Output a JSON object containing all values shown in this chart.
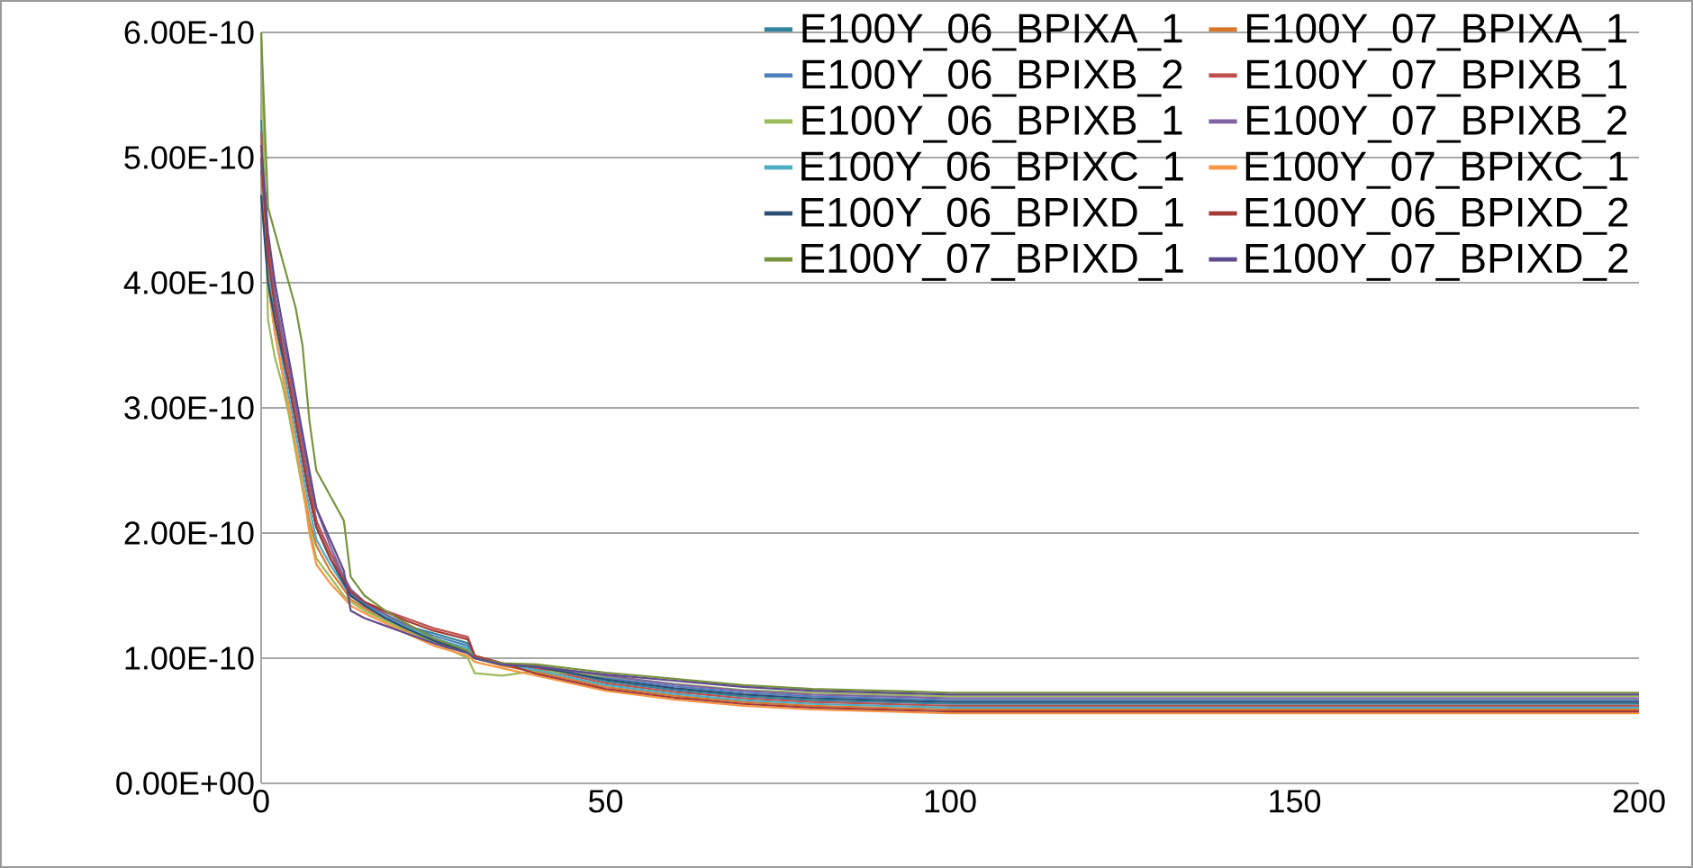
{
  "chart_data": {
    "type": "line",
    "x": [
      0,
      1,
      2,
      3,
      4,
      5,
      6,
      7,
      8,
      10,
      12,
      13,
      15,
      18,
      21,
      25,
      30,
      31,
      35,
      40,
      50,
      60,
      70,
      80,
      100,
      120,
      140,
      160,
      180,
      200
    ],
    "xlim": [
      0,
      200
    ],
    "xticks": [
      0,
      50,
      100,
      150,
      200
    ],
    "ylim": [
      0,
      6e-10
    ],
    "yticks": [
      {
        "value": 0,
        "label": "0.00E+00"
      },
      {
        "value": 1e-10,
        "label": "1.00E-10"
      },
      {
        "value": 2e-10,
        "label": "2.00E-10"
      },
      {
        "value": 3e-10,
        "label": "3.00E-10"
      },
      {
        "value": 4e-10,
        "label": "4.00E-10"
      },
      {
        "value": 5e-10,
        "label": "5.00E-10"
      },
      {
        "value": 6e-10,
        "label": "6.00E-10"
      }
    ],
    "grid": "y",
    "legend": "top right",
    "series": [
      {
        "name": "E100Y_06_BPIXA_1",
        "color": "#31859c",
        "values": [
          5.3e-10,
          4.3e-10,
          3.9e-10,
          3.5e-10,
          3.2e-10,
          2.9e-10,
          2.6e-10,
          2.3e-10,
          2.05e-10,
          1.8e-10,
          1.6e-10,
          1.5e-10,
          1.43e-10,
          1.33e-10,
          1.26e-10,
          1.2e-10,
          1.12e-10,
          1e-10,
          9.5e-11,
          9.35e-11,
          8.15e-11,
          7.45e-11,
          6.95e-11,
          6.65e-11,
          6.35e-11,
          6.35e-11,
          6.35e-11,
          6.35e-11,
          6.35e-11,
          6.35e-11
        ]
      },
      {
        "name": "E100Y_07_BPIXA_1",
        "color": "#d9782d",
        "values": [
          4.9e-10,
          4e-10,
          3.6e-10,
          3.3e-10,
          3e-10,
          2.7e-10,
          2.4e-10,
          2.1e-10,
          1.9e-10,
          1.7e-10,
          1.55e-10,
          1.47e-10,
          1.4e-10,
          1.3e-10,
          1.22e-10,
          1.13e-10,
          1.05e-10,
          1e-10,
          9.4e-11,
          8.9e-11,
          7.7e-11,
          7e-11,
          6.5e-11,
          6.2e-11,
          5.9e-11,
          5.9e-11,
          5.9e-11,
          5.9e-11,
          5.9e-11,
          5.9e-11
        ]
      },
      {
        "name": "E100Y_06_BPIXB_2",
        "color": "#4f81bd",
        "values": [
          5.1e-10,
          4.3e-10,
          3.9e-10,
          3.6e-10,
          3.3e-10,
          3e-10,
          2.7e-10,
          2.4e-10,
          2.1e-10,
          1.85e-10,
          1.62e-10,
          1.52e-10,
          1.44e-10,
          1.35e-10,
          1.27e-10,
          1.18e-10,
          1.1e-10,
          1e-10,
          9.5e-11,
          9.4e-11,
          8.45e-11,
          7.75e-11,
          7.25e-11,
          6.95e-11,
          6.65e-11,
          6.65e-11,
          6.65e-11,
          6.65e-11,
          6.65e-11,
          6.65e-11
        ]
      },
      {
        "name": "E100Y_07_BPIXB_1",
        "color": "#c0504d",
        "values": [
          5.2e-10,
          4.3e-10,
          3.9e-10,
          3.6e-10,
          3.3e-10,
          3e-10,
          2.7e-10,
          2.4e-10,
          2.1e-10,
          1.85e-10,
          1.65e-10,
          1.55e-10,
          1.45e-10,
          1.38e-10,
          1.32e-10,
          1.24e-10,
          1.17e-10,
          1.02e-10,
          9.6e-11,
          9.2e-11,
          8e-11,
          7.3e-11,
          6.8e-11,
          6.5e-11,
          6.2e-11,
          6.2e-11,
          6.2e-11,
          6.2e-11,
          6.2e-11,
          6.2e-11
        ]
      },
      {
        "name": "E100Y_06_BPIXB_1",
        "color": "#9bbb59",
        "values": [
          6e-10,
          3.7e-10,
          3.4e-10,
          3.2e-10,
          2.95e-10,
          2.65e-10,
          2.35e-10,
          2.05e-10,
          1.8e-10,
          1.65e-10,
          1.5e-10,
          1.45e-10,
          1.38e-10,
          1.3e-10,
          1.23e-10,
          1.13e-10,
          1e-10,
          8.8e-11,
          8.6e-11,
          9e-11,
          8.55e-11,
          7.95e-11,
          7.45e-11,
          7.25e-11,
          6.95e-11,
          6.95e-11,
          6.95e-11,
          6.95e-11,
          6.95e-11,
          6.95e-11
        ]
      },
      {
        "name": "E100Y_07_BPIXB_2",
        "color": "#8064a2",
        "values": [
          4.9e-10,
          4.2e-10,
          3.9e-10,
          3.6e-10,
          3.35e-10,
          3.05e-10,
          2.75e-10,
          2.45e-10,
          2.2e-10,
          1.9e-10,
          1.65e-10,
          1.55e-10,
          1.45e-10,
          1.35e-10,
          1.26e-10,
          1.15e-10,
          1.06e-10,
          1e-10,
          9.5e-11,
          9.4e-11,
          8.6e-11,
          7.9e-11,
          7.4e-11,
          7.1e-11,
          6.8e-11,
          6.8e-11,
          6.8e-11,
          6.8e-11,
          6.8e-11,
          6.8e-11
        ]
      },
      {
        "name": "E100Y_06_BPIXC_1",
        "color": "#4bacc6",
        "values": [
          5e-10,
          4.1e-10,
          3.7e-10,
          3.4e-10,
          3.1e-10,
          2.8e-10,
          2.5e-10,
          2.2e-10,
          1.95e-10,
          1.75e-10,
          1.58e-10,
          1.5e-10,
          1.42e-10,
          1.33e-10,
          1.25e-10,
          1.16e-10,
          1.08e-10,
          1e-10,
          9.5e-11,
          9.05e-11,
          7.85e-11,
          7.15e-11,
          6.65e-11,
          6.35e-11,
          6.05e-11,
          6.05e-11,
          6.05e-11,
          6.05e-11,
          6.05e-11,
          6.05e-11
        ]
      },
      {
        "name": "E100Y_07_BPIXC_1",
        "color": "#f79646",
        "values": [
          5.1e-10,
          4e-10,
          3.6e-10,
          3.3e-10,
          3e-10,
          2.7e-10,
          2.4e-10,
          2e-10,
          1.75e-10,
          1.6e-10,
          1.48e-10,
          1.42e-10,
          1.36e-10,
          1.28e-10,
          1.2e-10,
          1.1e-10,
          1.02e-10,
          9.7e-11,
          9.2e-11,
          8.6e-11,
          7.4e-11,
          6.7e-11,
          6.2e-11,
          5.9e-11,
          5.6e-11,
          5.6e-11,
          5.6e-11,
          5.6e-11,
          5.6e-11,
          5.6e-11
        ]
      },
      {
        "name": "E100Y_06_BPIXD_1",
        "color": "#2c4d75",
        "values": [
          4.7e-10,
          4e-10,
          3.7e-10,
          3.45e-10,
          3.2e-10,
          2.9e-10,
          2.6e-10,
          2.3e-10,
          2.05e-10,
          1.8e-10,
          1.6e-10,
          1.5e-10,
          1.42e-10,
          1.32e-10,
          1.24e-10,
          1.14e-10,
          1.05e-10,
          1e-10,
          9.5e-11,
          9.3e-11,
          8.3e-11,
          7.6e-11,
          7.1e-11,
          6.8e-11,
          6.5e-11,
          6.5e-11,
          6.5e-11,
          6.5e-11,
          6.5e-11,
          6.5e-11
        ]
      },
      {
        "name": "E100Y_06_BPIXD_2",
        "color": "#a33b38",
        "values": [
          5e-10,
          4.2e-10,
          3.8e-10,
          3.5e-10,
          3.2e-10,
          2.9e-10,
          2.6e-10,
          2.3e-10,
          2.05e-10,
          1.8e-10,
          1.62e-10,
          1.53e-10,
          1.45e-10,
          1.37e-10,
          1.3e-10,
          1.22e-10,
          1.15e-10,
          1.02e-10,
          9.6e-11,
          8.75e-11,
          7.55e-11,
          6.85e-11,
          6.35e-11,
          6.05e-11,
          5.75e-11,
          5.75e-11,
          5.75e-11,
          5.75e-11,
          5.75e-11,
          5.75e-11
        ]
      },
      {
        "name": "E100Y_07_BPIXD_1",
        "color": "#77933c",
        "values": [
          6e-10,
          4.6e-10,
          4.4e-10,
          4.2e-10,
          4e-10,
          3.8e-10,
          3.5e-10,
          2.9e-10,
          2.5e-10,
          2.3e-10,
          2.1e-10,
          1.65e-10,
          1.5e-10,
          1.38e-10,
          1.28e-10,
          1.16e-10,
          1.06e-10,
          1e-10,
          9.6e-11,
          9.5e-11,
          8.85e-11,
          8.35e-11,
          7.85e-11,
          7.55e-11,
          7.25e-11,
          7.25e-11,
          7.25e-11,
          7.25e-11,
          7.25e-11,
          7.25e-11
        ]
      },
      {
        "name": "E100Y_07_BPIXD_2",
        "color": "#5f4b8b",
        "values": [
          5.1e-10,
          4.4e-10,
          4e-10,
          3.7e-10,
          3.4e-10,
          3.1e-10,
          2.8e-10,
          2.5e-10,
          2.2e-10,
          1.95e-10,
          1.7e-10,
          1.38e-10,
          1.32e-10,
          1.26e-10,
          1.2e-10,
          1.12e-10,
          1.04e-10,
          1e-10,
          9.5e-11,
          9.3e-11,
          8.7e-11,
          8.2e-11,
          7.7e-11,
          7.4e-11,
          7.1e-11,
          7.1e-11,
          7.1e-11,
          7.1e-11,
          7.1e-11,
          7.1e-11
        ]
      }
    ]
  }
}
